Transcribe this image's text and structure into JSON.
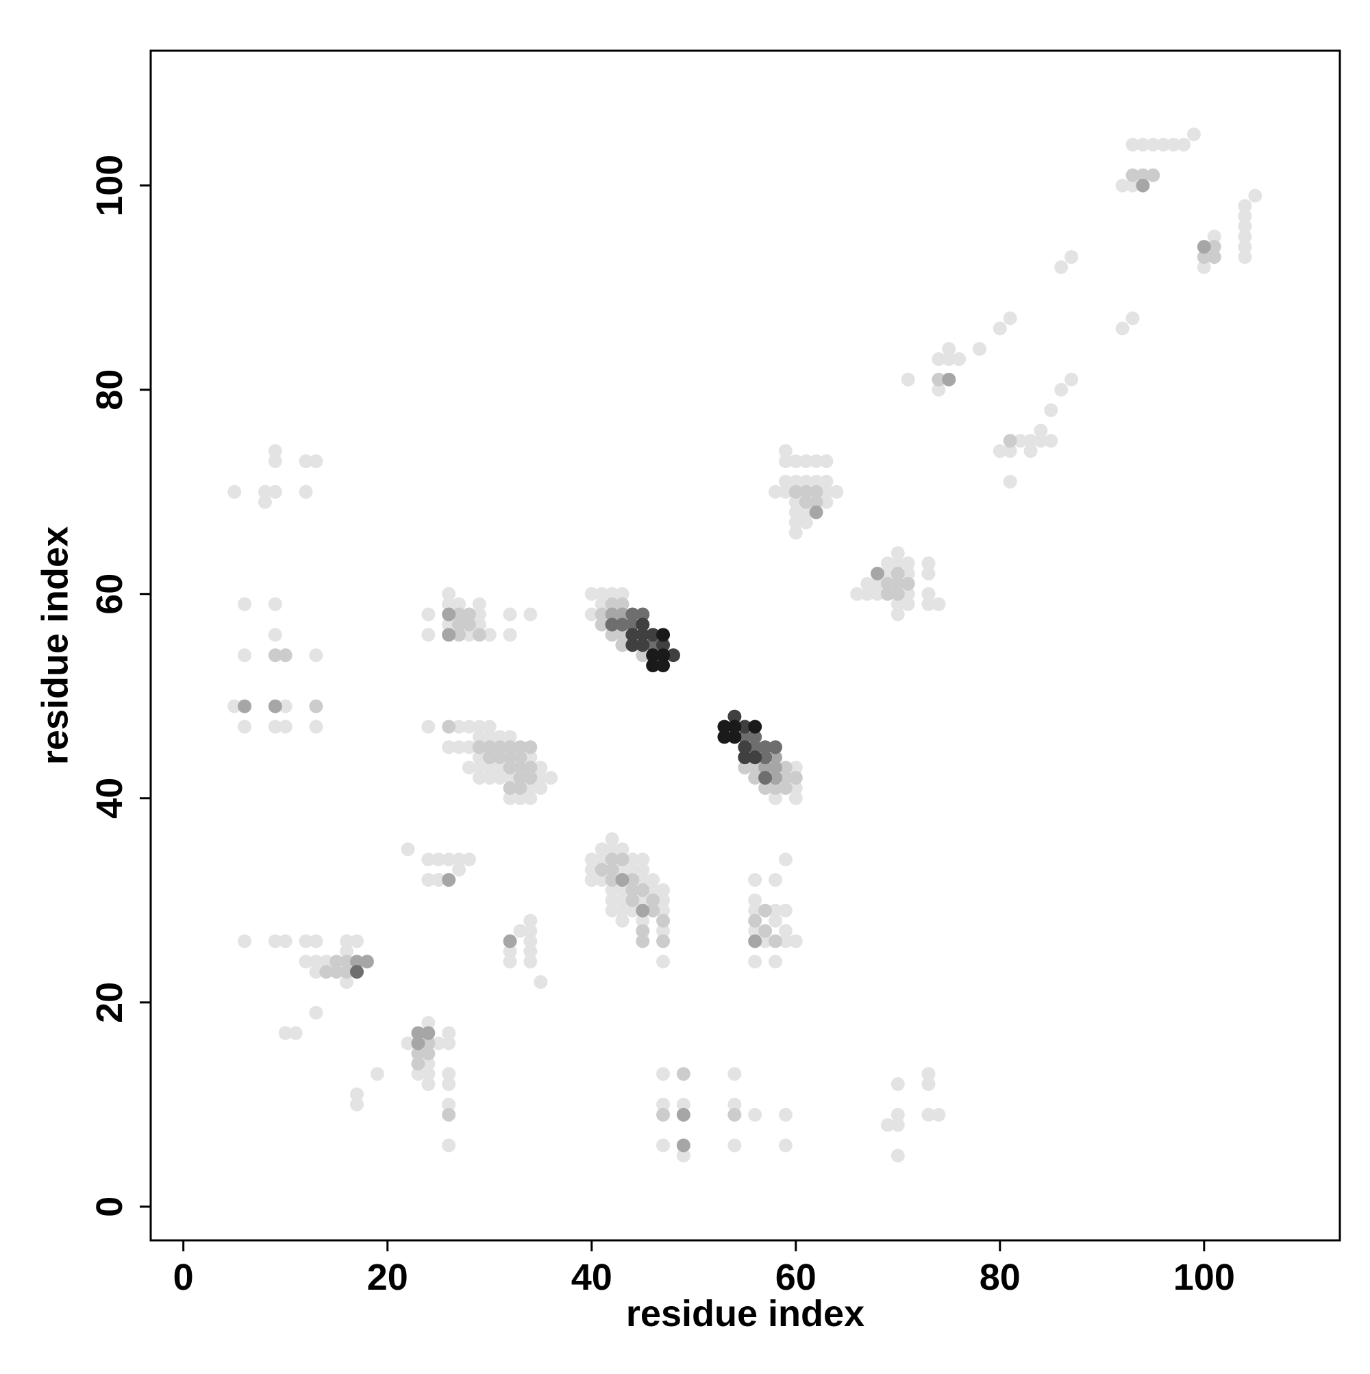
{
  "chart_data": {
    "type": "scatter",
    "xlabel": "residue index",
    "ylabel": "residue index",
    "xlim": [
      -3.2,
      113.3
    ],
    "ylim": [
      -3.3,
      113.2
    ],
    "xticks": [
      0,
      20,
      40,
      60,
      80,
      100
    ],
    "yticks": [
      0,
      20,
      40,
      60,
      80,
      100
    ],
    "grid": false,
    "series": [
      {
        "color": "#e3e3e3",
        "x": [
          93,
          94,
          95,
          96,
          97,
          98,
          99,
          92,
          93,
          105,
          104,
          104,
          104,
          104,
          104,
          104,
          101,
          100,
          92,
          93,
          86,
          87,
          80,
          81,
          78,
          74,
          75,
          75,
          76,
          71,
          74,
          86,
          87,
          85,
          84,
          83,
          84,
          85,
          82,
          80,
          81,
          83,
          81,
          59,
          59,
          60,
          61,
          62,
          63,
          59,
          60,
          61,
          62,
          63,
          58,
          59,
          63,
          64,
          60,
          63,
          60,
          61,
          60,
          61,
          60,
          70,
          69,
          70,
          71,
          73,
          69,
          71,
          73,
          67,
          68,
          66,
          67,
          68,
          71,
          73,
          70,
          71,
          73,
          74,
          70,
          40,
          41,
          42,
          43,
          40,
          41,
          60,
          58,
          60,
          60,
          24,
          27,
          28,
          29,
          30,
          26,
          27,
          28,
          29,
          30,
          31,
          32,
          28,
          29,
          30,
          31,
          35,
          29,
          34,
          29,
          30,
          31,
          32,
          35,
          36,
          34,
          35,
          32,
          33,
          34,
          26,
          26,
          27,
          29,
          24,
          29,
          32,
          34,
          26,
          29,
          24,
          28,
          30,
          32,
          5,
          8,
          9,
          8,
          9,
          9,
          12,
          13,
          12,
          6,
          9,
          9,
          6,
          13,
          5,
          10,
          6,
          9,
          10,
          13,
          22,
          24,
          25,
          26,
          27,
          28,
          27,
          24,
          25,
          42,
          41,
          42,
          43,
          40,
          41,
          44,
          45,
          40,
          43,
          44,
          45,
          40,
          41,
          45,
          46,
          42,
          43,
          46,
          47,
          42,
          43,
          45,
          47,
          42,
          43,
          44,
          47,
          43,
          45,
          47,
          47,
          56,
          58,
          59,
          56,
          56,
          58,
          59,
          58,
          56,
          59,
          57,
          59,
          60,
          56,
          58,
          34,
          33,
          34,
          34,
          32,
          34,
          32,
          34,
          35,
          6,
          9,
          10,
          12,
          13,
          16,
          17,
          12,
          13,
          14,
          13,
          16,
          16,
          13,
          10,
          11,
          24,
          26,
          22,
          25,
          26,
          24,
          23,
          24,
          26,
          24,
          26,
          26,
          26,
          19,
          17,
          17,
          47,
          47,
          49,
          47,
          49,
          54,
          54,
          56,
          59,
          54,
          59,
          70,
          73,
          73,
          69,
          70,
          70,
          73,
          74,
          70
        ],
        "y": [
          104,
          104,
          104,
          104,
          104,
          104,
          105,
          100,
          100,
          99,
          98,
          97,
          96,
          95,
          94,
          93,
          95,
          92,
          86,
          87,
          92,
          93,
          86,
          87,
          84,
          83,
          84,
          83,
          83,
          81,
          80,
          80,
          81,
          78,
          76,
          75,
          75,
          75,
          75,
          74,
          74,
          74,
          71,
          74,
          73,
          73,
          73,
          73,
          73,
          71,
          71,
          71,
          71,
          71,
          70,
          70,
          70,
          70,
          69,
          69,
          68,
          68,
          67,
          67,
          66,
          64,
          63,
          63,
          63,
          63,
          62,
          62,
          62,
          61,
          61,
          60,
          60,
          60,
          60,
          60,
          59,
          59,
          59,
          59,
          58,
          60,
          60,
          60,
          60,
          58,
          59,
          43,
          40,
          40,
          41,
          47,
          47,
          47,
          47,
          47,
          45,
          45,
          45,
          46,
          46,
          46,
          46,
          43,
          43,
          43,
          43,
          43,
          44,
          44,
          42,
          42,
          42,
          42,
          42,
          42,
          41,
          41,
          40,
          40,
          40,
          60,
          59,
          59,
          59,
          58,
          58,
          58,
          58,
          57,
          57,
          56,
          56,
          56,
          56,
          70,
          70,
          70,
          69,
          74,
          73,
          73,
          73,
          70,
          59,
          59,
          56,
          54,
          54,
          49,
          49,
          47,
          47,
          47,
          47,
          35,
          34,
          34,
          34,
          34,
          34,
          33,
          32,
          32,
          36,
          35,
          35,
          35,
          34,
          34,
          34,
          34,
          33,
          33,
          33,
          33,
          32,
          32,
          32,
          32,
          31,
          31,
          31,
          31,
          30,
          30,
          30,
          30,
          29,
          29,
          29,
          29,
          28,
          28,
          27,
          24,
          32,
          32,
          34,
          30,
          29,
          29,
          29,
          28,
          27,
          27,
          26,
          26,
          26,
          24,
          24,
          28,
          27,
          27,
          26,
          25,
          25,
          24,
          24,
          22,
          26,
          26,
          26,
          26,
          26,
          26,
          26,
          24,
          24,
          24,
          23,
          25,
          22,
          19,
          17,
          17,
          18,
          17,
          16,
          16,
          16,
          14,
          13,
          13,
          13,
          12,
          12,
          10,
          6,
          13,
          11,
          10,
          13,
          10,
          10,
          6,
          5,
          13,
          10,
          9,
          9,
          6,
          6,
          12,
          13,
          12,
          8,
          9,
          8,
          9,
          9,
          5
        ]
      },
      {
        "color": "#cccccc",
        "x": [
          43,
          42,
          41,
          41,
          42,
          43,
          43,
          45,
          56,
          56,
          57,
          58,
          59,
          59,
          55,
          30,
          31,
          32,
          33,
          30,
          31,
          32,
          33,
          32,
          33,
          34,
          33,
          34,
          32,
          33,
          27,
          28,
          27,
          28,
          27,
          29,
          41,
          42,
          42,
          43,
          42,
          44,
          44,
          45,
          44,
          46,
          46,
          45,
          47,
          57,
          56,
          57,
          58,
          14,
          15,
          16,
          16,
          15,
          24,
          23,
          24,
          23,
          61,
          62,
          61,
          62,
          60,
          69,
          70,
          69,
          70,
          71,
          70,
          101,
          100,
          93,
          94,
          95,
          101,
          74,
          81,
          47,
          54,
          26,
          47,
          45,
          49,
          13,
          10,
          9,
          26,
          29,
          34,
          60,
          59
        ],
        "y": [
          59,
          59,
          58,
          57,
          56,
          56,
          55,
          54,
          43,
          42,
          41,
          41,
          42,
          41,
          43,
          45,
          45,
          45,
          45,
          44,
          44,
          44,
          44,
          43,
          43,
          43,
          42,
          42,
          41,
          41,
          58,
          58,
          57,
          57,
          56,
          56,
          33,
          33,
          34,
          34,
          32,
          32,
          31,
          31,
          30,
          30,
          29,
          27,
          28,
          29,
          28,
          27,
          26,
          23,
          23,
          23,
          24,
          24,
          16,
          15,
          15,
          14,
          70,
          70,
          69,
          69,
          70,
          61,
          61,
          60,
          62,
          61,
          60,
          93,
          93,
          101,
          101,
          101,
          94,
          81,
          75,
          9,
          9,
          9,
          26,
          26,
          13,
          49,
          54,
          54,
          47,
          45,
          45,
          42,
          43
        ]
      },
      {
        "color": "#a6a6a6",
        "x": [
          42,
          43,
          58,
          57,
          58,
          58,
          6,
          9,
          26,
          26,
          26,
          43,
          45,
          56,
          32,
          17,
          18,
          23,
          24,
          23,
          62,
          68,
          100,
          94,
          75,
          49,
          49
        ],
        "y": [
          58,
          58,
          44,
          43,
          43,
          42,
          49,
          49,
          58,
          56,
          32,
          32,
          29,
          26,
          26,
          24,
          24,
          17,
          17,
          16,
          68,
          62,
          94,
          100,
          81,
          9,
          6
        ]
      },
      {
        "color": "#6e6e6e",
        "x": [
          44,
          45,
          42,
          43,
          44,
          56,
          57,
          58,
          57,
          57,
          46,
          17,
          55,
          56
        ],
        "y": [
          58,
          58,
          57,
          57,
          57,
          46,
          45,
          45,
          44,
          42,
          55,
          23,
          46,
          45
        ]
      },
      {
        "color": "#404040",
        "x": [
          45,
          46,
          44,
          45,
          47,
          48,
          55,
          54,
          55,
          55,
          56,
          45,
          44
        ],
        "y": [
          56,
          56,
          55,
          55,
          55,
          54,
          47,
          48,
          45,
          44,
          44,
          57,
          56
        ]
      },
      {
        "color": "#1a1a1a",
        "x": [
          47,
          46,
          47,
          46,
          47,
          53,
          54,
          56,
          53,
          54
        ],
        "y": [
          56,
          54,
          54,
          53,
          53,
          47,
          47,
          47,
          46,
          46
        ]
      }
    ]
  }
}
